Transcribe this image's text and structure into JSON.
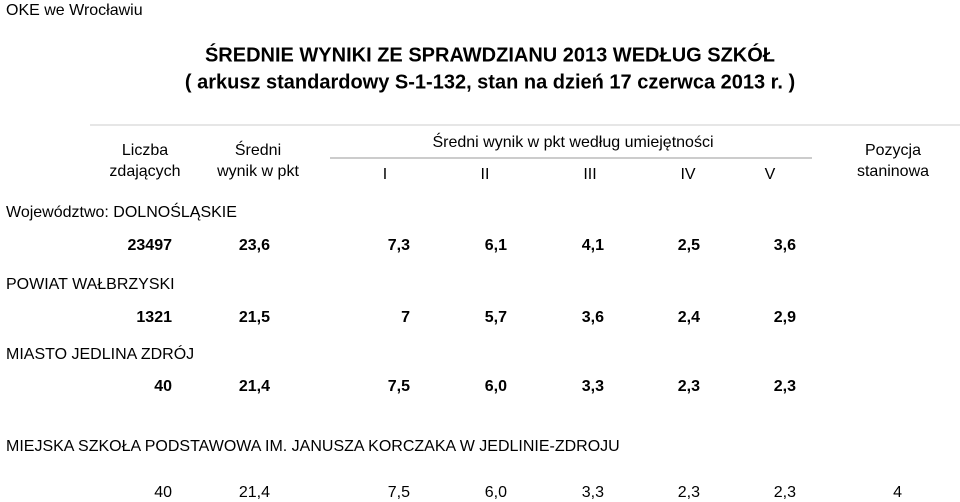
{
  "header": {
    "org": "OKE we Wrocławiu",
    "title": "ŚREDNIE WYNIKI ZE SPRAWDZIANU 2013 WEDŁUG SZKÓŁ",
    "subtitle": "( arkusz standardowy S-1-132, stan na dzień 17 czerwca 2013 r. )"
  },
  "columns": {
    "count": [
      "Liczba",
      "zdających"
    ],
    "mean": [
      "Średni",
      "wynik w pkt"
    ],
    "skills_title": "Średni wynik w pkt według umiejętności",
    "skills": [
      "I",
      "II",
      "III",
      "IV",
      "V"
    ],
    "stanine": [
      "Pozycja",
      "staninowa"
    ]
  },
  "sections": [
    {
      "label": "Województwo: DOLNOŚLĄSKIE",
      "values": [
        "23497",
        "23,6",
        "7,3",
        "6,1",
        "4,1",
        "2,5",
        "3,6"
      ]
    },
    {
      "label": "POWIAT WAŁBRZYSKI",
      "values": [
        "1321",
        "21,5",
        "7",
        "5,7",
        "3,6",
        "2,4",
        "2,9"
      ]
    },
    {
      "label": "MIASTO JEDLINA ZDRÓJ",
      "values": [
        "40",
        "21,4",
        "7,5",
        "6,0",
        "3,3",
        "2,3",
        "2,3"
      ]
    },
    {
      "label": "MIEJSKA SZKOŁA PODSTAWOWA IM. JANUSZA KORCZAKA W JEDLINIE-ZDROJU",
      "values": [
        "40",
        "21,4",
        "7,5",
        "6,0",
        "3,3",
        "2,3",
        "2,3",
        "4"
      ]
    }
  ]
}
